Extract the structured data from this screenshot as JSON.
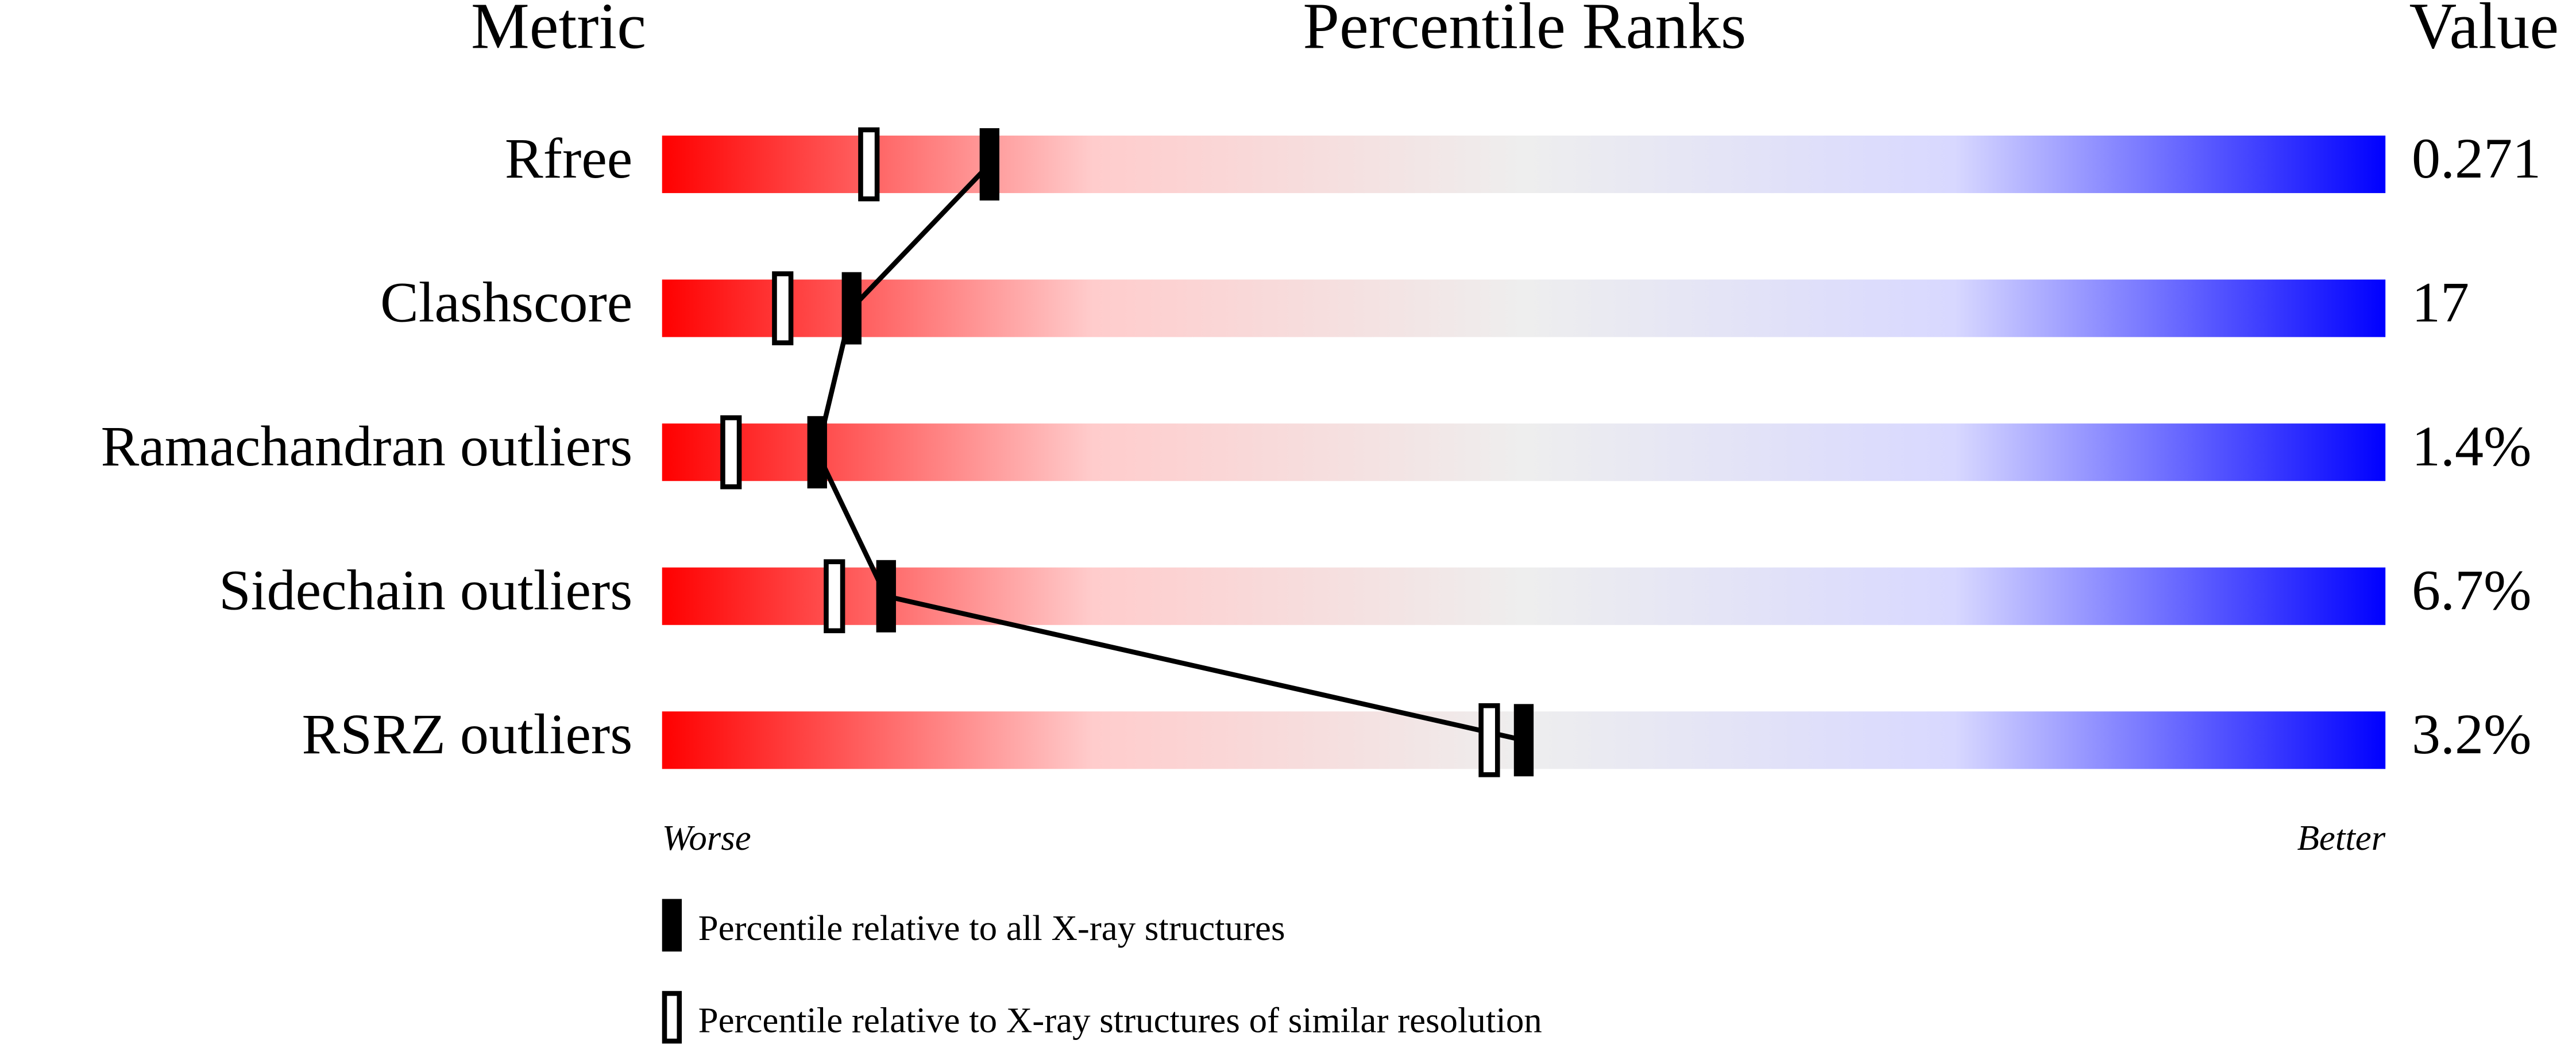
{
  "chart_data": {
    "type": "percentile-slider",
    "headers": {
      "metric": "Metric",
      "ranks": "Percentile Ranks",
      "value": "Value"
    },
    "categories": [
      "Rfree",
      "Clashscore",
      "Ramachandran outliers",
      "Sidechain outliers",
      "RSRZ outliers"
    ],
    "metric_values": [
      "0.271",
      "17",
      "1.4%",
      "6.7%",
      "3.2%"
    ],
    "series": [
      {
        "name": "Percentile relative to all X-ray structures",
        "color": "#000000",
        "style": "filled",
        "values": [
          19,
          11,
          9,
          13,
          50
        ]
      },
      {
        "name": "Percentile relative to X-ray structures of similar resolution",
        "color": "#000000",
        "style": "open",
        "values": [
          12,
          7,
          4,
          10,
          48
        ]
      }
    ],
    "xlim": [
      0,
      100
    ],
    "worse_label": "Worse",
    "better_label": "Better",
    "gradient": [
      "#ff0000",
      "#ffcccc",
      "#eeeeee",
      "#d8d8ff",
      "#0000ff"
    ]
  }
}
